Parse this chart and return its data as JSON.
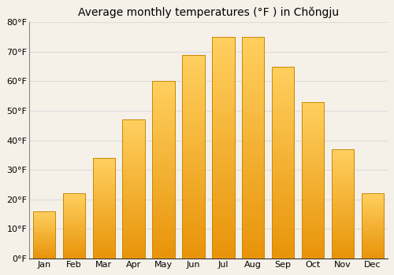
{
  "title": "Average monthly temperatures (°F ) in Chŏngju",
  "months": [
    "Jan",
    "Feb",
    "Mar",
    "Apr",
    "May",
    "Jun",
    "Jul",
    "Aug",
    "Sep",
    "Oct",
    "Nov",
    "Dec"
  ],
  "values": [
    16,
    22,
    34,
    47,
    60,
    69,
    75,
    75,
    65,
    53,
    37,
    22
  ],
  "bar_color_face": "#FFAA00",
  "bar_color_edge": "#CC8800",
  "ylim": [
    0,
    80
  ],
  "yticks": [
    0,
    10,
    20,
    30,
    40,
    50,
    60,
    70,
    80
  ],
  "ytick_labels": [
    "0°F",
    "10°F",
    "20°F",
    "30°F",
    "40°F",
    "50°F",
    "60°F",
    "70°F",
    "80°F"
  ],
  "bg_color": "#f5f0e8",
  "plot_bg_color": "#f5f0e8",
  "grid_color": "#dddddd",
  "title_fontsize": 10,
  "tick_fontsize": 8,
  "bar_width": 0.75
}
